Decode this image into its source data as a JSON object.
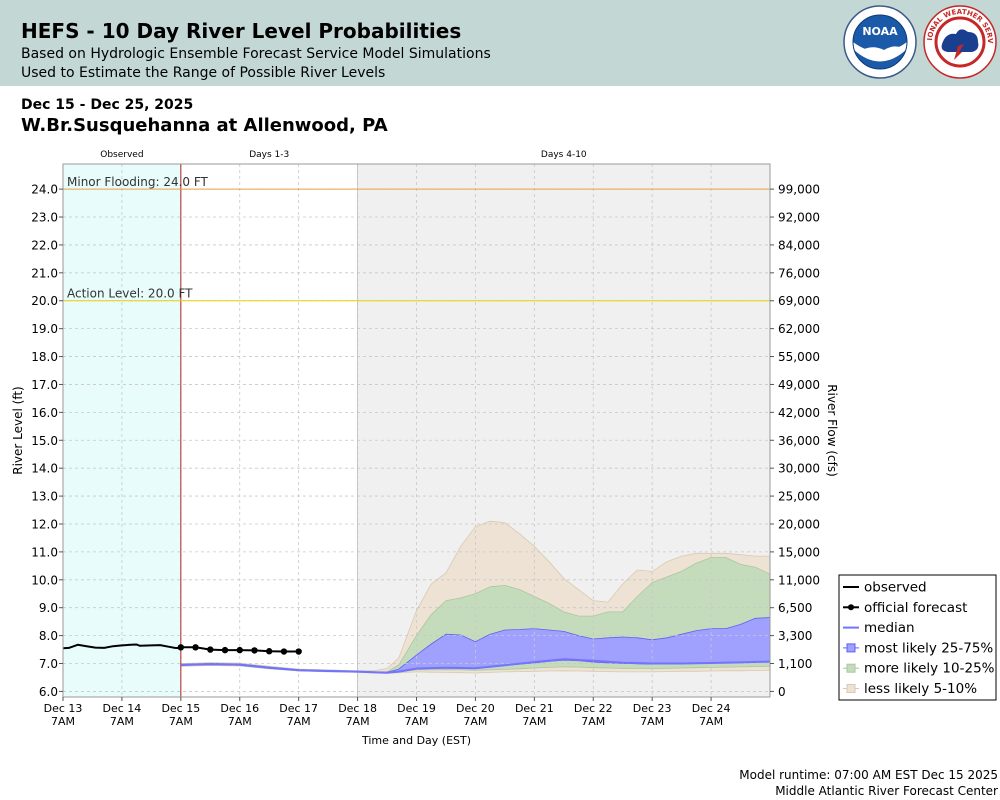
{
  "header": {
    "title": "HEFS - 10 Day River Level Probabilities",
    "subtitle1": "Based on Hydrologic Ensemble Forecast Service Model Simulations",
    "subtitle2": "Used to Estimate the Range of Possible River Levels",
    "noaa_logo_text": "NOAA",
    "nws_logo_text": "NATIONAL WEATHER SERVICE"
  },
  "date_range": "Dec 15 - Dec 25, 2025",
  "station": "W.Br.Susquehanna at Allenwood, PA",
  "footer": {
    "runtime": "Model runtime: 07:00 AM EST Dec 15 2025",
    "center": "Middle Atlantic River Forecast Center"
  },
  "colors": {
    "observed_bg": "#e9fcfc",
    "days410_bg": "#f0f0f0",
    "minor_line": "#e8a040",
    "action_line": "#e8d000",
    "median": "#7373ff",
    "band_25_75": "#a0a0ff",
    "band_10_25": "#c5dcbc",
    "band_5_10": "#ede2d3",
    "observed_line": "#000000",
    "forecast_line": "#000000",
    "obs_divider": "#b22222"
  },
  "chart_data": {
    "type": "area",
    "title": "HEFS - 10 Day River Level Probabilities",
    "xlabel": "Time and Day (EST)",
    "ylabel": "River Level (ft)",
    "y2label": "River Flow (cfs)",
    "ylim": [
      5.8,
      24.9
    ],
    "x_range_days": [
      0,
      12
    ],
    "x_ticks": [
      {
        "pos": 0,
        "day": "Dec 13",
        "time": "7AM"
      },
      {
        "pos": 1,
        "day": "Dec 14",
        "time": "7AM"
      },
      {
        "pos": 2,
        "day": "Dec 15",
        "time": "7AM"
      },
      {
        "pos": 3,
        "day": "Dec 16",
        "time": "7AM"
      },
      {
        "pos": 4,
        "day": "Dec 17",
        "time": "7AM"
      },
      {
        "pos": 5,
        "day": "Dec 18",
        "time": "7AM"
      },
      {
        "pos": 6,
        "day": "Dec 19",
        "time": "7AM"
      },
      {
        "pos": 7,
        "day": "Dec 20",
        "time": "7AM"
      },
      {
        "pos": 8,
        "day": "Dec 21",
        "time": "7AM"
      },
      {
        "pos": 9,
        "day": "Dec 22",
        "time": "7AM"
      },
      {
        "pos": 10,
        "day": "Dec 23",
        "time": "7AM"
      },
      {
        "pos": 11,
        "day": "Dec 24",
        "time": "7AM"
      }
    ],
    "y_ticks": [
      {
        "stage": 6.0,
        "stage_label": "6.0",
        "flow_label": "0"
      },
      {
        "stage": 7.0,
        "stage_label": "7.0",
        "flow_label": "1,100"
      },
      {
        "stage": 8.0,
        "stage_label": "8.0",
        "flow_label": "3,300"
      },
      {
        "stage": 9.0,
        "stage_label": "9.0",
        "flow_label": "6,500"
      },
      {
        "stage": 10.0,
        "stage_label": "10.0",
        "flow_label": "11,000"
      },
      {
        "stage": 11.0,
        "stage_label": "11.0",
        "flow_label": "15,000"
      },
      {
        "stage": 12.0,
        "stage_label": "12.0",
        "flow_label": "20,000"
      },
      {
        "stage": 13.0,
        "stage_label": "13.0",
        "flow_label": "25,000"
      },
      {
        "stage": 14.0,
        "stage_label": "14.0",
        "flow_label": "30,000"
      },
      {
        "stage": 15.0,
        "stage_label": "15.0",
        "flow_label": "36,000"
      },
      {
        "stage": 16.0,
        "stage_label": "16.0",
        "flow_label": "42,000"
      },
      {
        "stage": 17.0,
        "stage_label": "17.0",
        "flow_label": "49,000"
      },
      {
        "stage": 18.0,
        "stage_label": "18.0",
        "flow_label": "55,000"
      },
      {
        "stage": 19.0,
        "stage_label": "19.0",
        "flow_label": "62,000"
      },
      {
        "stage": 20.0,
        "stage_label": "20.0",
        "flow_label": "69,000"
      },
      {
        "stage": 21.0,
        "stage_label": "21.0",
        "flow_label": "76,000"
      },
      {
        "stage": 22.0,
        "stage_label": "22.0",
        "flow_label": "84,000"
      },
      {
        "stage": 23.0,
        "stage_label": "23.0",
        "flow_label": "92,000"
      },
      {
        "stage": 24.0,
        "stage_label": "24.0",
        "flow_label": "99,000"
      }
    ],
    "regions": [
      {
        "label": "Observed",
        "start": 0,
        "end": 2
      },
      {
        "label": "Days 1-3",
        "start": 2,
        "end": 5
      },
      {
        "label": "Days 4-10",
        "start": 5,
        "end": 12
      }
    ],
    "thresholds": [
      {
        "label": "Minor Flooding: 24.0 FT",
        "value": 24.0
      },
      {
        "label": "Action Level: 20.0 FT",
        "value": 20.0
      }
    ],
    "series": [
      {
        "name": "observed",
        "kind": "line",
        "x": [
          0,
          0.1,
          0.25,
          0.4,
          0.55,
          0.7,
          0.85,
          1.0,
          1.15,
          1.25,
          1.3,
          1.5,
          1.65,
          1.8,
          1.9,
          2.0
        ],
        "y": [
          7.55,
          7.56,
          7.67,
          7.62,
          7.57,
          7.56,
          7.62,
          7.65,
          7.67,
          7.68,
          7.64,
          7.65,
          7.66,
          7.6,
          7.56,
          7.55
        ]
      },
      {
        "name": "official forecast",
        "kind": "line_points",
        "x": [
          2.0,
          2.25,
          2.5,
          2.75,
          3.0,
          3.25,
          3.5,
          3.75,
          4.0
        ],
        "y": [
          7.58,
          7.58,
          7.5,
          7.48,
          7.48,
          7.47,
          7.44,
          7.43,
          7.43
        ]
      },
      {
        "name": "median",
        "kind": "line",
        "x": [
          2.0,
          2.5,
          3.0,
          3.5,
          4.0,
          4.5,
          5.0,
          5.3,
          5.5,
          5.7,
          6.0,
          6.5,
          7.0,
          7.5,
          8.0,
          8.5,
          9.0,
          9.5,
          10.0,
          10.5,
          11.0,
          11.5,
          12.0
        ],
        "y": [
          6.95,
          6.98,
          6.96,
          6.85,
          6.76,
          6.73,
          6.71,
          6.68,
          6.67,
          6.71,
          6.82,
          6.85,
          6.83,
          6.94,
          7.05,
          7.15,
          7.1,
          7.03,
          7.0,
          7.0,
          7.02,
          7.04,
          7.07
        ]
      },
      {
        "name": "most likely 25-75%",
        "kind": "band",
        "x": [
          2.0,
          2.5,
          3.0,
          3.5,
          4.0,
          4.5,
          5.0,
          5.3,
          5.5,
          5.7,
          6.0,
          6.25,
          6.5,
          6.75,
          7.0,
          7.25,
          7.5,
          7.75,
          8.0,
          8.25,
          8.5,
          8.75,
          9.0,
          9.25,
          9.5,
          9.75,
          10.0,
          10.25,
          10.5,
          10.75,
          11.0,
          11.25,
          11.5,
          11.75,
          12.0
        ],
        "lower": [
          6.93,
          6.96,
          6.94,
          6.83,
          6.75,
          6.72,
          6.7,
          6.68,
          6.67,
          6.7,
          6.8,
          6.82,
          6.85,
          6.84,
          6.82,
          6.88,
          6.93,
          6.98,
          7.02,
          7.08,
          7.12,
          7.1,
          7.05,
          7.02,
          7.0,
          6.99,
          6.98,
          6.99,
          7.0,
          7.01,
          7.02,
          7.04,
          7.05,
          7.06,
          7.07
        ],
        "upper": [
          6.97,
          7.0,
          6.98,
          6.87,
          6.78,
          6.75,
          6.72,
          6.7,
          6.69,
          6.8,
          7.3,
          7.7,
          8.05,
          8.02,
          7.78,
          8.05,
          8.2,
          8.22,
          8.25,
          8.2,
          8.15,
          8.0,
          7.88,
          7.92,
          7.95,
          7.92,
          7.85,
          7.92,
          8.05,
          8.18,
          8.25,
          8.25,
          8.4,
          8.62,
          8.65
        ]
      },
      {
        "name": "more likely 10-25%",
        "kind": "band",
        "x": [
          2.0,
          2.5,
          3.0,
          3.5,
          4.0,
          4.5,
          5.0,
          5.3,
          5.5,
          5.7,
          6.0,
          6.25,
          6.5,
          6.75,
          7.0,
          7.25,
          7.5,
          7.75,
          8.0,
          8.25,
          8.5,
          8.75,
          9.0,
          9.25,
          9.5,
          9.75,
          10.0,
          10.25,
          10.5,
          10.75,
          11.0,
          11.25,
          11.5,
          11.75,
          12.0
        ],
        "lower": [
          6.92,
          6.95,
          6.93,
          6.82,
          6.74,
          6.71,
          6.69,
          6.67,
          6.66,
          6.69,
          6.77,
          6.77,
          6.78,
          6.77,
          6.76,
          6.77,
          6.79,
          6.81,
          6.84,
          6.86,
          6.88,
          6.87,
          6.85,
          6.84,
          6.83,
          6.83,
          6.82,
          6.83,
          6.84,
          6.85,
          6.86,
          6.87,
          6.88,
          6.89,
          6.9
        ],
        "upper": [
          6.98,
          7.01,
          6.99,
          6.88,
          6.79,
          6.76,
          6.73,
          6.71,
          6.7,
          6.95,
          8.0,
          8.75,
          9.25,
          9.35,
          9.5,
          9.75,
          9.8,
          9.65,
          9.4,
          9.15,
          8.85,
          8.7,
          8.7,
          8.85,
          8.85,
          9.4,
          9.9,
          10.1,
          10.3,
          10.6,
          10.8,
          10.8,
          10.55,
          10.45,
          10.2
        ]
      },
      {
        "name": "less likely 5-10%",
        "kind": "band",
        "x": [
          2.0,
          2.5,
          3.0,
          3.5,
          4.0,
          4.5,
          5.0,
          5.3,
          5.5,
          5.7,
          6.0,
          6.25,
          6.5,
          6.75,
          7.0,
          7.25,
          7.5,
          7.75,
          8.0,
          8.25,
          8.5,
          8.75,
          9.0,
          9.25,
          9.5,
          9.75,
          10.0,
          10.25,
          10.5,
          10.75,
          11.0,
          11.25,
          11.5,
          11.75,
          12.0
        ],
        "lower": [
          6.9,
          6.93,
          6.91,
          6.81,
          6.73,
          6.7,
          6.68,
          6.66,
          6.65,
          6.67,
          6.7,
          6.69,
          6.68,
          6.67,
          6.66,
          6.68,
          6.7,
          6.71,
          6.72,
          6.73,
          6.74,
          6.73,
          6.72,
          6.71,
          6.7,
          6.7,
          6.7,
          6.71,
          6.72,
          6.72,
          6.73,
          6.74,
          6.74,
          6.75,
          6.76
        ],
        "upper": [
          7.0,
          7.03,
          7.01,
          6.9,
          6.8,
          6.77,
          6.74,
          6.75,
          6.82,
          7.2,
          8.9,
          9.85,
          10.25,
          11.2,
          11.9,
          12.1,
          12.05,
          11.65,
          11.2,
          10.65,
          10.05,
          9.65,
          9.25,
          9.2,
          9.85,
          10.35,
          10.3,
          10.65,
          10.85,
          10.95,
          10.95,
          10.95,
          10.9,
          10.85,
          10.85
        ]
      }
    ],
    "legend": {
      "position": "bottom-right",
      "entries": [
        "observed",
        "official forecast",
        "median",
        "most likely 25-75%",
        "more likely 10-25%",
        "less likely 5-10%"
      ]
    }
  }
}
